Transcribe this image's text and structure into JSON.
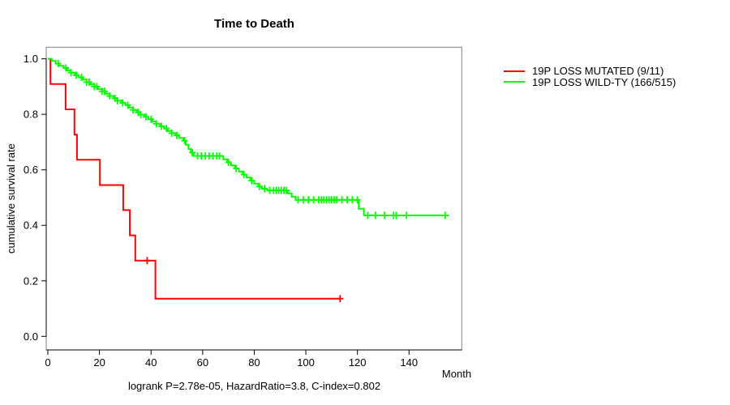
{
  "figure": {
    "title": "Time to Death",
    "y_axis_label": "cumulative survival rate",
    "x_axis_label": "Month",
    "footer": "logrank P=2.78e-05, HazardRatio=3.8, C-index=0.802"
  },
  "legend": {
    "items": [
      {
        "label": "19P LOSS MUTATED (9/11)",
        "color": "#FF0000"
      },
      {
        "label": "19P LOSS WILD-TY (166/515)",
        "color": "#00FF00"
      }
    ]
  },
  "chart_data": {
    "type": "line",
    "subtype": "kaplan-meier-step",
    "title": "Time to Death",
    "xlabel": "Month",
    "ylabel": "cumulative survival rate",
    "xlim": [
      0,
      160
    ],
    "ylim": [
      0,
      1.04
    ],
    "grid": false,
    "legend_position": "right-outside",
    "x_ticks": [
      "0",
      "20",
      "40",
      "60",
      "80",
      "100",
      "120",
      "140"
    ],
    "y_ticks": [
      "0.0",
      "0.2",
      "0.4",
      "0.6",
      "0.8",
      "1.0"
    ],
    "annotation": "logrank P=2.78e-05, HazardRatio=3.8, C-index=0.802",
    "series": [
      {
        "name": "19P LOSS MUTATED (9/11)",
        "color": "#FF0000",
        "n_total": 11,
        "n_events": 9,
        "steps": [
          [
            0,
            1.0
          ],
          [
            1,
            0.909
          ],
          [
            6.9,
            0.818
          ],
          [
            10.3,
            0.727
          ],
          [
            11.3,
            0.636
          ],
          [
            20.2,
            0.545
          ],
          [
            29.2,
            0.455
          ],
          [
            31.8,
            0.364
          ],
          [
            33.9,
            0.273
          ],
          [
            41.7,
            0.136
          ],
          [
            113.3,
            0.136
          ]
        ],
        "censor_marks_months": [
          38.5,
          113.3
        ]
      },
      {
        "name": "19P LOSS WILD-TY (166/515)",
        "color": "#00FF00",
        "n_total": 515,
        "n_events": 166,
        "steps": [
          [
            0,
            1.0
          ],
          [
            1.5,
            0.992
          ],
          [
            3,
            0.983
          ],
          [
            4.5,
            0.975
          ],
          [
            6,
            0.967
          ],
          [
            7.5,
            0.958
          ],
          [
            9,
            0.95
          ],
          [
            10.5,
            0.941
          ],
          [
            12,
            0.933
          ],
          [
            13.5,
            0.925
          ],
          [
            15,
            0.916
          ],
          [
            16.5,
            0.908
          ],
          [
            18,
            0.9
          ],
          [
            19.5,
            0.891
          ],
          [
            21,
            0.883
          ],
          [
            22.5,
            0.874
          ],
          [
            24,
            0.866
          ],
          [
            25.5,
            0.858
          ],
          [
            27,
            0.849
          ],
          [
            28.5,
            0.841
          ],
          [
            30,
            0.833
          ],
          [
            31.5,
            0.824
          ],
          [
            33,
            0.816
          ],
          [
            34.5,
            0.807
          ],
          [
            36,
            0.799
          ],
          [
            37.5,
            0.791
          ],
          [
            39,
            0.782
          ],
          [
            40.5,
            0.774
          ],
          [
            42,
            0.766
          ],
          [
            43.5,
            0.757
          ],
          [
            45,
            0.749
          ],
          [
            46.5,
            0.74
          ],
          [
            48,
            0.732
          ],
          [
            49.5,
            0.724
          ],
          [
            51,
            0.715
          ],
          [
            52.5,
            0.705
          ],
          [
            53.5,
            0.69
          ],
          [
            54.5,
            0.675
          ],
          [
            55.5,
            0.662
          ],
          [
            56.5,
            0.65
          ],
          [
            66.5,
            0.65
          ],
          [
            68,
            0.638
          ],
          [
            69.5,
            0.627
          ],
          [
            71,
            0.616
          ],
          [
            72.5,
            0.605
          ],
          [
            74,
            0.594
          ],
          [
            75.5,
            0.583
          ],
          [
            77,
            0.572
          ],
          [
            78.5,
            0.561
          ],
          [
            80,
            0.55
          ],
          [
            81.5,
            0.54
          ],
          [
            83,
            0.532
          ],
          [
            85,
            0.527
          ],
          [
            86,
            0.526
          ],
          [
            93,
            0.515
          ],
          [
            94.5,
            0.503
          ],
          [
            96,
            0.492
          ],
          [
            120.5,
            0.46
          ],
          [
            122.5,
            0.436
          ],
          [
            155.5,
            0.436
          ]
        ],
        "censor_marks_months": [
          4,
          7,
          9,
          11,
          13,
          15,
          16,
          18,
          19,
          21,
          22,
          24,
          26,
          27,
          29,
          31,
          33,
          35,
          36,
          38,
          40,
          42,
          44,
          46,
          48,
          50,
          53,
          56,
          58,
          59.5,
          61,
          62.5,
          64,
          65.5,
          66.5,
          70,
          73,
          76,
          79,
          82,
          84,
          86,
          87.5,
          88.5,
          89.5,
          90.5,
          91.5,
          92.5,
          97,
          99,
          101,
          103,
          105,
          106,
          107,
          108,
          109,
          110,
          111,
          112,
          114,
          116,
          118,
          120,
          124,
          127,
          130.5,
          134,
          135,
          139,
          154
        ]
      }
    ]
  }
}
